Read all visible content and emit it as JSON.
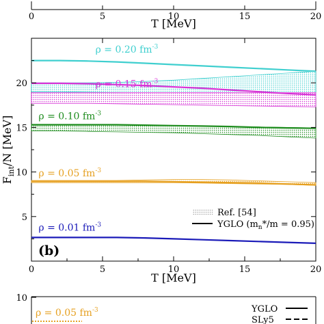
{
  "top_fragment": {
    "x_ticks": [
      "0",
      "5",
      "10",
      "15",
      "20"
    ],
    "xlabel": "T [MeV]"
  },
  "chart_data": {
    "type": "line",
    "panel_label": "(b)",
    "xlabel": "T [MeV]",
    "ylabel": "F_int/N [MeV]",
    "xlim": [
      0,
      20
    ],
    "ylim": [
      0,
      25
    ],
    "x_ticks": [
      0,
      5,
      10,
      15,
      20
    ],
    "y_ticks": [
      5,
      10,
      15,
      20
    ],
    "grid": false,
    "legend_position": "bottom-right",
    "legend": [
      {
        "label": "Ref. [54]",
        "style": "hatched band"
      },
      {
        "label": "YGLO (m_n*/m = 0.95)",
        "style": "solid line"
      }
    ],
    "series": [
      {
        "name": "ρ = 0.20 fm^-3",
        "color": "#3fcfcf",
        "x": [
          0,
          2,
          4,
          6,
          8,
          10,
          12,
          14,
          16,
          18,
          20
        ],
        "y": [
          22.5,
          22.5,
          22.45,
          22.35,
          22.2,
          22.05,
          21.9,
          21.75,
          21.6,
          21.45,
          21.3
        ],
        "band_low": [
          19.0,
          19.0,
          18.95,
          18.9,
          18.8,
          18.75,
          18.65,
          18.55,
          18.5,
          18.4,
          18.3
        ],
        "band_high": [
          20.0,
          20.0,
          20.0,
          20.05,
          20.15,
          20.3,
          20.5,
          20.7,
          20.9,
          21.1,
          21.3
        ]
      },
      {
        "name": "ρ = 0.15 fm^-3",
        "color": "#d633d6",
        "x": [
          0,
          2,
          4,
          6,
          8,
          10,
          12,
          14,
          16,
          18,
          20
        ],
        "y": [
          19.95,
          19.95,
          19.9,
          19.8,
          19.7,
          19.55,
          19.4,
          19.2,
          19.0,
          18.8,
          18.65
        ],
        "band_low": [
          17.7,
          17.7,
          17.7,
          17.65,
          17.6,
          17.55,
          17.5,
          17.45,
          17.4,
          17.35,
          17.3
        ],
        "band_high": [
          18.9,
          18.9,
          18.9,
          18.9,
          18.9,
          18.9,
          18.9,
          18.9,
          18.9,
          18.9,
          18.9
        ]
      },
      {
        "name": "ρ = 0.10 fm^-3",
        "color": "#1e8c1e",
        "x": [
          0,
          2,
          4,
          6,
          8,
          10,
          12,
          14,
          16,
          18,
          20
        ],
        "y": [
          15.3,
          15.3,
          15.3,
          15.3,
          15.25,
          15.2,
          15.15,
          15.1,
          15.0,
          14.95,
          14.9
        ],
        "band_low": [
          14.6,
          14.6,
          14.55,
          14.5,
          14.45,
          14.4,
          14.3,
          14.2,
          14.1,
          13.95,
          13.8
        ],
        "band_high": [
          15.3,
          15.3,
          15.3,
          15.3,
          15.25,
          15.2,
          15.15,
          15.1,
          15.05,
          15.0,
          14.95
        ]
      },
      {
        "name": "ρ = 0.05 fm^-3",
        "color": "#e6a020",
        "x": [
          0,
          2,
          4,
          6,
          8,
          10,
          12,
          14,
          16,
          18,
          20
        ],
        "y": [
          8.95,
          8.95,
          8.95,
          8.95,
          8.95,
          8.9,
          8.85,
          8.8,
          8.75,
          8.65,
          8.55
        ],
        "band_low": [
          8.8,
          8.8,
          8.8,
          8.8,
          8.8,
          8.8,
          8.75,
          8.7,
          8.65,
          8.6,
          8.5
        ],
        "band_high": [
          9.05,
          9.05,
          9.05,
          9.05,
          9.1,
          9.15,
          9.15,
          9.1,
          9.0,
          8.9,
          8.8
        ]
      },
      {
        "name": "ρ = 0.01 fm^-3",
        "color": "#1a1ab8",
        "x": [
          0,
          2,
          4,
          6,
          8,
          10,
          12,
          14,
          16,
          18,
          20
        ],
        "y": [
          2.65,
          2.65,
          2.65,
          2.65,
          2.6,
          2.5,
          2.4,
          2.3,
          2.2,
          2.1,
          2.0
        ]
      }
    ]
  },
  "bottom_fragment": {
    "y_ticks": [
      "10"
    ],
    "label": "ρ = 0.05 fm^-3",
    "label_color": "#e6a020",
    "legend": [
      "YGLO",
      "SLy5"
    ]
  }
}
